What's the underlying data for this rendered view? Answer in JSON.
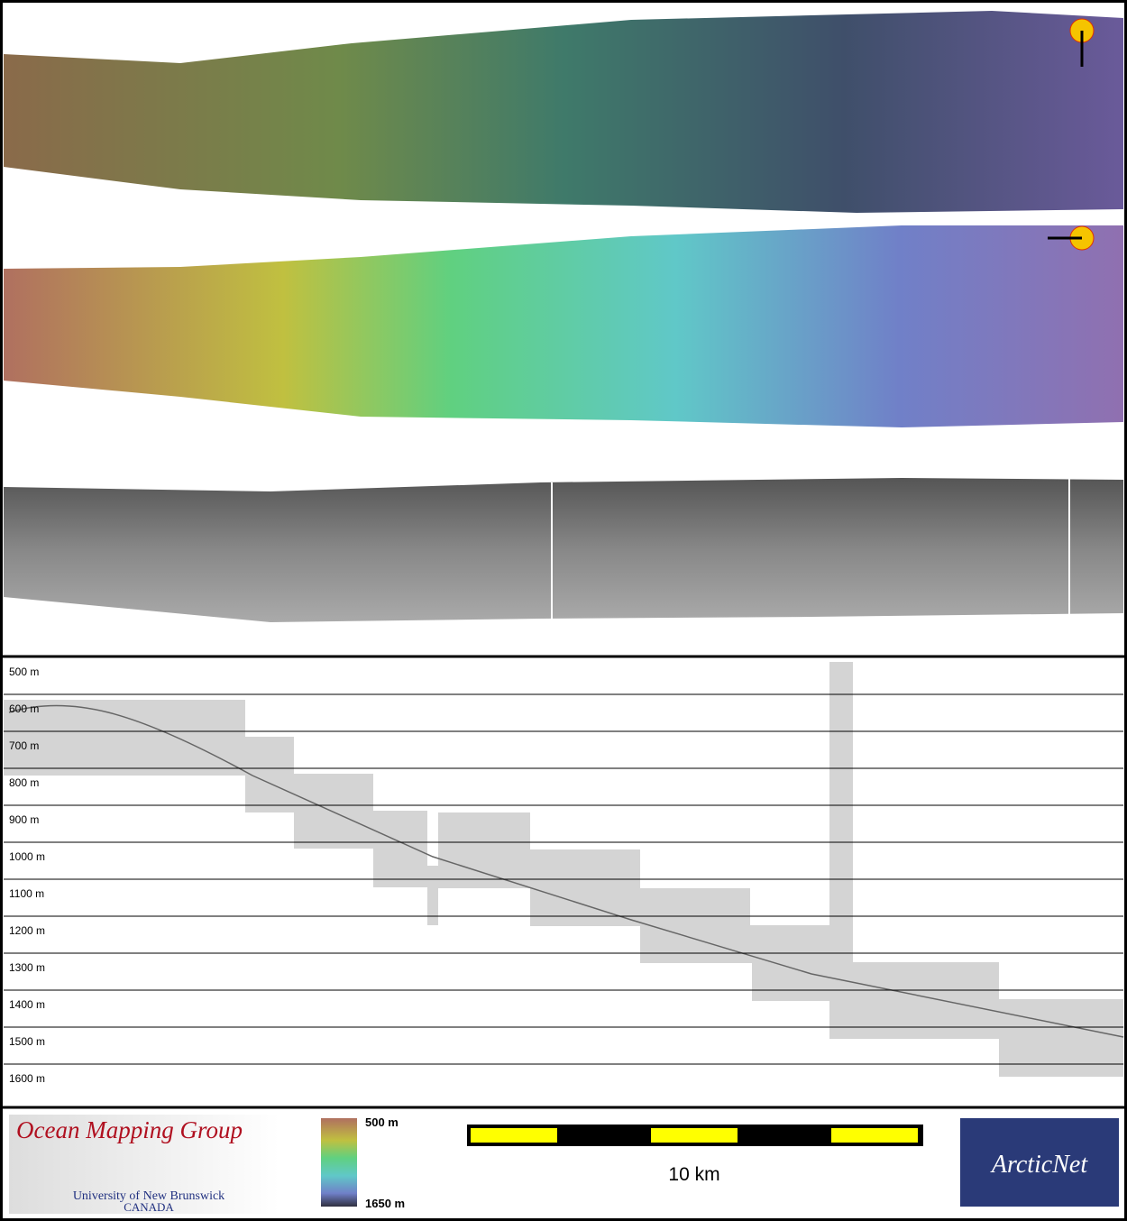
{
  "profile": {
    "depth_labels": [
      "500 m",
      "600 m",
      "700 m",
      "800 m",
      "900 m",
      "1000 m",
      "1100 m",
      "1200 m",
      "1300 m",
      "1400 m",
      "1500 m",
      "1600 m"
    ]
  },
  "legend": {
    "colorbar_top": "500 m",
    "colorbar_bottom": "1650 m",
    "scale_bar": "10 km"
  },
  "logos": {
    "omg_title": "Ocean Mapping Group",
    "omg_university": "University of New Brunswick",
    "omg_country": "CANADA",
    "arcticnet": "ArcticNet"
  }
}
